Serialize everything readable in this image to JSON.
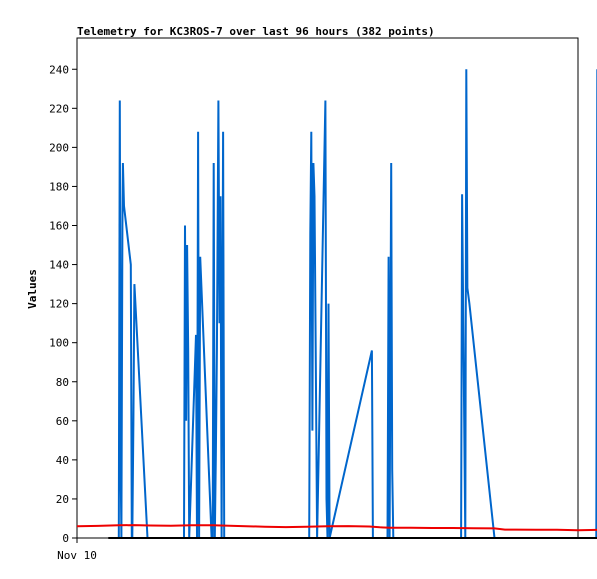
{
  "chart_data": {
    "type": "line",
    "title": "Telemetry for KC3ROS-7 over last 96 hours (382 points)",
    "xlabel": "",
    "ylabel": "Values",
    "x_tick_labels": [
      "Nov 10"
    ],
    "ylim": [
      0,
      256
    ],
    "yticks": [
      0,
      20,
      40,
      60,
      80,
      100,
      120,
      140,
      160,
      180,
      200,
      220,
      240
    ],
    "grid": false,
    "legend": "none",
    "xlim": [
      0,
      96
    ],
    "series": [
      {
        "color": "#0066cc",
        "x": [
          8.0,
          8.2,
          8.4,
          8.5,
          8.7,
          8.8,
          9.0,
          10.3,
          10.5,
          10.6,
          10.8,
          11.0,
          13.5,
          20.5,
          20.7,
          20.9,
          21.1,
          21.3,
          21.5,
          22.8,
          23.0,
          23.2,
          23.4,
          23.6,
          25.8,
          26.0,
          26.2,
          26.4,
          26.6,
          26.8,
          27.1,
          27.3,
          27.5,
          27.7,
          28.0,
          28.2,
          44.5,
          44.7,
          44.9,
          45.1,
          45.3,
          45.5,
          45.7,
          46.0,
          47.6,
          47.8,
          48.0,
          48.2,
          48.4,
          56.5,
          56.7,
          59.5,
          59.7,
          59.9,
          60.2,
          60.4,
          60.6,
          73.6,
          73.8,
          74.4,
          74.6,
          74.8,
          75.2,
          80.0,
          99.5,
          99.7,
          99.9,
          100.1
        ],
        "values": [
          0,
          224,
          30,
          0,
          160,
          192,
          170,
          140,
          0,
          0,
          60,
          130,
          0,
          0,
          160,
          60,
          150,
          96,
          0,
          104,
          0,
          208,
          0,
          144,
          0,
          0,
          192,
          0,
          40,
          96,
          224,
          110,
          175,
          0,
          208,
          0,
          0,
          156,
          208,
          55,
          192,
          175,
          110,
          0,
          224,
          20,
          0,
          120,
          0,
          96,
          0,
          0,
          144,
          0,
          192,
          35,
          0,
          0,
          176,
          0,
          240,
          128,
          120,
          0,
          0,
          240,
          120,
          0
        ]
      },
      {
        "color": "#ee0000",
        "x": [
          0,
          4,
          8,
          11,
          14,
          18,
          22,
          26,
          30,
          36,
          40,
          44,
          48,
          52,
          56,
          58,
          60,
          64,
          68,
          72,
          76,
          80,
          82,
          84,
          88,
          92,
          96,
          100
        ],
        "values": [
          6,
          6.2,
          6.5,
          6.6,
          6.4,
          6.3,
          6.5,
          6.5,
          6.2,
          5.8,
          5.6,
          5.8,
          6.0,
          6.1,
          5.9,
          5.5,
          5.2,
          5.2,
          5.1,
          5.1,
          5.0,
          4.9,
          4.3,
          4.3,
          4.2,
          4.2,
          4.0,
          4.2
        ]
      },
      {
        "color": "#000000",
        "x": [
          6,
          101
        ],
        "values": [
          0,
          0
        ]
      }
    ]
  }
}
